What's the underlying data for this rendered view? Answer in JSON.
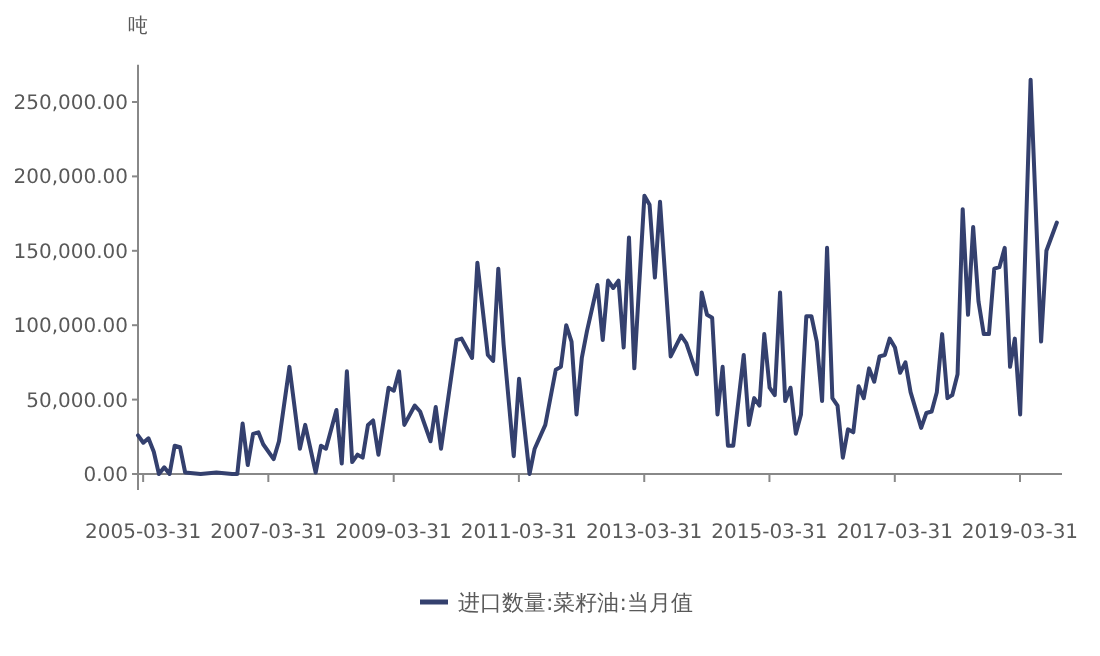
{
  "chart_data": {
    "type": "line",
    "ylabel": "吨",
    "legend": "bottom",
    "x": [
      "2005-03",
      "2005-04",
      "2005-05",
      "2005-06",
      "2005-07",
      "2005-08",
      "2005-09",
      "2005-10",
      "2005-11",
      "2005-12",
      "2006-03",
      "2006-06",
      "2006-09",
      "2006-10",
      "2006-11",
      "2006-12",
      "2007-01",
      "2007-02",
      "2007-03",
      "2007-05",
      "2007-06",
      "2007-08",
      "2007-10",
      "2007-11",
      "2008-01",
      "2008-02",
      "2008-03",
      "2008-05",
      "2008-06",
      "2008-07",
      "2008-08",
      "2008-09",
      "2008-10",
      "2008-11",
      "2008-12",
      "2009-01",
      "2009-03",
      "2009-04",
      "2009-05",
      "2009-06",
      "2009-08",
      "2009-09",
      "2009-11",
      "2009-12",
      "2010-01",
      "2010-04",
      "2010-05",
      "2010-07",
      "2010-08",
      "2010-10",
      "2010-11",
      "2010-12",
      "2011-01",
      "2011-03",
      "2011-04",
      "2011-06",
      "2011-07",
      "2011-09",
      "2011-11",
      "2011-12",
      "2012-01",
      "2012-02",
      "2012-03",
      "2012-04",
      "2012-05",
      "2012-07",
      "2012-08",
      "2012-09",
      "2012-10",
      "2012-11",
      "2012-12",
      "2013-01",
      "2013-02",
      "2013-04",
      "2013-05",
      "2013-06",
      "2013-07",
      "2013-09",
      "2013-11",
      "2013-12",
      "2014-02",
      "2014-03",
      "2014-04",
      "2014-05",
      "2014-06",
      "2014-07",
      "2014-08",
      "2014-09",
      "2014-11",
      "2014-12",
      "2015-01",
      "2015-02",
      "2015-03",
      "2015-04",
      "2015-05",
      "2015-06",
      "2015-07",
      "2015-08",
      "2015-09",
      "2015-10",
      "2015-11",
      "2015-12",
      "2016-01",
      "2016-02",
      "2016-03",
      "2016-04",
      "2016-05",
      "2016-06",
      "2016-07",
      "2016-08",
      "2016-09",
      "2016-10",
      "2016-11",
      "2016-12",
      "2017-01",
      "2017-02",
      "2017-03",
      "2017-04",
      "2017-05",
      "2017-06",
      "2017-07",
      "2017-09",
      "2017-10",
      "2017-11",
      "2017-12",
      "2018-01",
      "2018-02",
      "2018-03",
      "2018-04",
      "2018-05",
      "2018-06",
      "2018-07",
      "2018-08",
      "2018-09",
      "2018-10",
      "2018-11",
      "2018-12",
      "2019-01",
      "2019-02",
      "2019-03",
      "2019-04",
      "2019-06",
      "2019-08",
      "2019-09",
      "2019-11"
    ],
    "series": [
      {
        "name": "进口数量:菜籽油:当月值",
        "color": "#34406e",
        "values": [
          26000,
          21000,
          24000,
          15000,
          0,
          4500,
          0,
          19000,
          18000,
          1000,
          0,
          1000,
          0,
          0,
          34000,
          6000,
          27000,
          28000,
          20000,
          10000,
          22000,
          72000,
          17000,
          33000,
          1000,
          19000,
          17000,
          43000,
          7000,
          69000,
          8000,
          13000,
          11000,
          33000,
          36000,
          13000,
          58000,
          56000,
          69000,
          33000,
          46000,
          42000,
          22000,
          45000,
          17000,
          90000,
          91000,
          78000,
          142000,
          80000,
          76000,
          138000,
          87000,
          12000,
          64000,
          0,
          17000,
          33000,
          70000,
          72000,
          100000,
          89000,
          40000,
          78000,
          96000,
          127000,
          90000,
          130000,
          125000,
          130000,
          85000,
          159000,
          71000,
          187000,
          181000,
          132000,
          183000,
          79000,
          93000,
          88000,
          67000,
          122000,
          107000,
          105000,
          40000,
          72000,
          19000,
          19000,
          80000,
          33000,
          51000,
          46000,
          94000,
          58000,
          53000,
          122000,
          49000,
          58000,
          27000,
          40000,
          106000,
          106000,
          89000,
          49000,
          152000,
          51000,
          46000,
          11000,
          30000,
          28000,
          59000,
          51000,
          71000,
          62000,
          79000,
          80000,
          91000,
          85000,
          68000,
          75000,
          55000,
          31000,
          41000,
          42000,
          55000,
          94000,
          51000,
          53000,
          67000,
          178000,
          107000,
          166000,
          116000,
          94000,
          94000,
          138000,
          139000,
          152000,
          72000,
          91000,
          40000,
          265000,
          89000,
          150000,
          169000
        ]
      }
    ],
    "xlim": [
      "2005-03",
      "2019-12"
    ],
    "xticks": [
      "2005-03-31",
      "2007-03-31",
      "2009-03-31",
      "2011-03-31",
      "2013-03-31",
      "2015-03-31",
      "2017-03-31",
      "2019-03-31"
    ],
    "ylim": [
      0,
      275000
    ],
    "yticks": [
      {
        "value": 0,
        "label": "0.00"
      },
      {
        "value": 50000,
        "label": "50,000.00"
      },
      {
        "value": 100000,
        "label": "100,000.00"
      },
      {
        "value": 150000,
        "label": "150,000.00"
      },
      {
        "value": 200000,
        "label": "200,000.00"
      },
      {
        "value": 250000,
        "label": "250,000.00"
      }
    ]
  }
}
